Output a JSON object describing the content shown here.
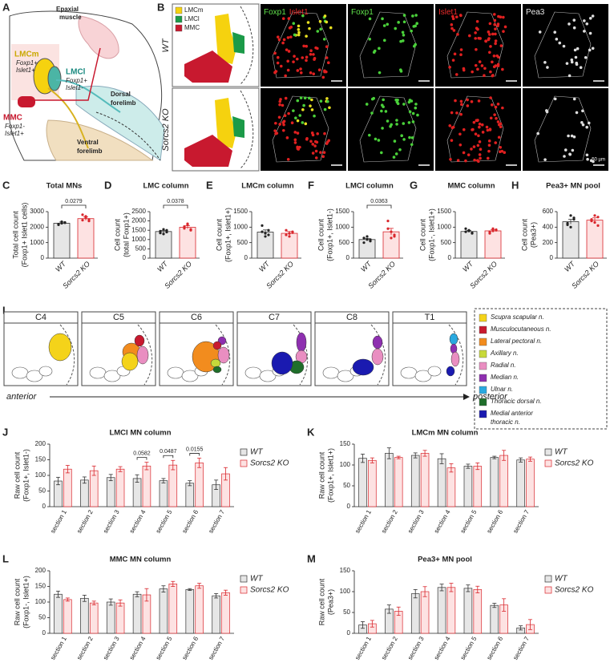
{
  "panel_a": {
    "letter": "A",
    "epaxial": [
      "Epaxial",
      "muscle"
    ],
    "lmcm": "LMCm",
    "lmcm_markers": [
      "Foxp1+",
      "Islet1+"
    ],
    "lmcl": "LMCl",
    "lmcl_markers": [
      "Foxp1+",
      "Islet1-"
    ],
    "mmc": "MMC",
    "mmc_markers": [
      "Foxp1-",
      "Islet1+"
    ],
    "dorsal": [
      "Dorsal",
      "forelimb"
    ],
    "ventral": [
      "Ventral",
      "forelimb"
    ]
  },
  "panel_b": {
    "letter": "B",
    "rows": [
      "WT",
      "Sorcs2 KO"
    ],
    "legend": [
      {
        "name": "LMCm",
        "color": "#f5d20f"
      },
      {
        "name": "LMCl",
        "color": "#1b9a48"
      },
      {
        "name": "MMC",
        "color": "#c8192f"
      }
    ],
    "channels": [
      [
        {
          "text": "Foxp1",
          "color": "#5fe04a"
        },
        {
          "text": "Islet1",
          "color": "#ee2b2b"
        }
      ],
      [
        {
          "text": "Foxp1",
          "color": "#5fe04a"
        }
      ],
      [
        {
          "text": "Islet1",
          "color": "#ee2b2b"
        }
      ],
      [
        {
          "text": "Pea3",
          "color": "#e6e6e6"
        }
      ]
    ],
    "scale_bar": "50 µm"
  },
  "panel_i": {
    "letter": "I",
    "levels": [
      "C4",
      "C5",
      "C6",
      "C7",
      "C8",
      "T1"
    ],
    "start": "anterior",
    "end": "posterior",
    "nerves": [
      {
        "lines": [
          "Scupra scapular n."
        ],
        "color": "#f4d31a"
      },
      {
        "lines": [
          "Musculocutaneous n."
        ],
        "color": "#c8192f"
      },
      {
        "lines": [
          "Lateral pectoral n."
        ],
        "color": "#f28c1e"
      },
      {
        "lines": [
          "Axillary n."
        ],
        "color": "#c7d93a"
      },
      {
        "lines": [
          "Radial n."
        ],
        "color": "#e98ec1"
      },
      {
        "lines": [
          "Median n."
        ],
        "color": "#8e2fb0"
      },
      {
        "lines": [
          "Ulnar n."
        ],
        "color": "#29a9e0"
      },
      {
        "lines": [
          "Thoracic dorsal n."
        ],
        "color": "#1f6e2a"
      },
      {
        "lines": [
          "Medial anterior",
          "thoracic n."
        ],
        "color": "#1a1ab0"
      }
    ]
  },
  "chart_data": [
    {
      "type": "bar",
      "panel": "C",
      "title": "Total MNs",
      "ylabel": [
        "Total cell count",
        "(Foxp1+ Islet1 cells)"
      ],
      "categories": [
        "WT",
        "Sorcs2 KO"
      ],
      "values": [
        2250,
        2550
      ],
      "errors": [
        80,
        110
      ],
      "points": [
        [
          2150,
          2250,
          2300,
          2200,
          2350,
          2280
        ],
        [
          2450,
          2700,
          2500,
          2800,
          2600,
          2400
        ]
      ],
      "colors": [
        "#e6e6e6",
        "#fde2e2"
      ],
      "edge_colors": [
        "#333333",
        "#d9262c"
      ],
      "ylim": [
        0,
        3000
      ],
      "yticks": [
        0,
        1000,
        2000,
        3000
      ],
      "p_value": "0.0279"
    },
    {
      "type": "bar",
      "panel": "D",
      "title": "LMC column",
      "ylabel": [
        "Cell count",
        "(total Foxp1+)"
      ],
      "categories": [
        "WT",
        "Sorcs2 KO"
      ],
      "values": [
        1430,
        1660
      ],
      "errors": [
        60,
        80
      ],
      "points": [
        [
          1350,
          1300,
          1500,
          1450,
          1550,
          1400
        ],
        [
          1600,
          1850,
          1500,
          1700,
          1800,
          1550
        ]
      ],
      "colors": [
        "#e6e6e6",
        "#fde2e2"
      ],
      "edge_colors": [
        "#333333",
        "#d9262c"
      ],
      "ylim": [
        0,
        2500
      ],
      "yticks": [
        0,
        500,
        1000,
        1500,
        2000,
        2500
      ],
      "p_value": "0.0378"
    },
    {
      "type": "bar",
      "panel": "E",
      "title": "LMCm column",
      "ylabel": [
        "Cell count",
        "(Foxp1+, Islet1+)"
      ],
      "categories": [
        "WT",
        "Sorcs2 KO"
      ],
      "values": [
        840,
        800
      ],
      "errors": [
        70,
        60
      ],
      "points": [
        [
          1050,
          700,
          900,
          850,
          800,
          750
        ],
        [
          900,
          700,
          850,
          750,
          800,
          820
        ]
      ],
      "colors": [
        "#e6e6e6",
        "#fde2e2"
      ],
      "edge_colors": [
        "#333333",
        "#d9262c"
      ],
      "ylim": [
        0,
        1500
      ],
      "yticks": [
        0,
        500,
        1000,
        1500
      ]
    },
    {
      "type": "bar",
      "panel": "F",
      "title": "LMCl column",
      "ylabel": [
        "Cell count",
        "(Foxp1+, Islet1-)"
      ],
      "categories": [
        "WT",
        "Sorcs2 KO"
      ],
      "values": [
        600,
        850
      ],
      "errors": [
        40,
        110
      ],
      "points": [
        [
          500,
          600,
          550,
          650,
          700,
          600
        ],
        [
          1200,
          650,
          700,
          950,
          850,
          750
        ]
      ],
      "colors": [
        "#e6e6e6",
        "#fde2e2"
      ],
      "edge_colors": [
        "#333333",
        "#d9262c"
      ],
      "ylim": [
        0,
        1500
      ],
      "yticks": [
        0,
        500,
        1000,
        1500
      ],
      "p_value": "0.0363"
    },
    {
      "type": "bar",
      "panel": "G",
      "title": "MMC column",
      "ylabel": [
        "Cell count",
        "(Foxp1-, Islet1+)"
      ],
      "categories": [
        "WT",
        "Sorcs2 KO"
      ],
      "values": [
        860,
        880
      ],
      "errors": [
        30,
        40
      ],
      "points": [
        [
          850,
          900,
          800,
          950,
          880,
          820
        ],
        [
          850,
          950,
          900,
          800,
          880,
          920
        ]
      ],
      "colors": [
        "#e6e6e6",
        "#fde2e2"
      ],
      "edge_colors": [
        "#333333",
        "#d9262c"
      ],
      "ylim": [
        0,
        1500
      ],
      "yticks": [
        0,
        500,
        1000,
        1500
      ]
    },
    {
      "type": "bar",
      "panel": "H",
      "title": "Pea3+ MN pool",
      "ylabel": [
        "Cell count",
        "(Pea3+)"
      ],
      "categories": [
        "WT",
        "Sorcs2 KO"
      ],
      "values": [
        470,
        490
      ],
      "errors": [
        30,
        30
      ],
      "points": [
        [
          430,
          550,
          500,
          450,
          400,
          520
        ],
        [
          480,
          550,
          420,
          500,
          460,
          530
        ]
      ],
      "colors": [
        "#e6e6e6",
        "#fde2e2"
      ],
      "edge_colors": [
        "#333333",
        "#d9262c"
      ],
      "ylim": [
        0,
        600
      ],
      "yticks": [
        0,
        200,
        400,
        600
      ]
    },
    {
      "type": "bar",
      "panel": "J",
      "title": "LMCl MN column",
      "ylabel": [
        "Raw cell count",
        "(Foxp1+, Islet1-)"
      ],
      "categories": [
        "section 1",
        "section 2",
        "section 3",
        "section 4",
        "section 5",
        "section 6",
        "section 7"
      ],
      "series": [
        {
          "name": "WT",
          "color": "#e6e6e6",
          "edge_color": "#333333",
          "values": [
            82,
            85,
            93,
            90,
            83,
            75,
            70
          ],
          "errors": [
            12,
            10,
            10,
            12,
            7,
            8,
            15
          ]
        },
        {
          "name": "Sorcs2 KO",
          "color": "#fde2e2",
          "edge_color": "#d9262c",
          "values": [
            120,
            115,
            120,
            130,
            133,
            140,
            105
          ],
          "errors": [
            12,
            15,
            8,
            12,
            15,
            15,
            20
          ]
        }
      ],
      "ylim": [
        0,
        200
      ],
      "yticks": [
        0,
        50,
        100,
        150,
        200
      ],
      "annotations": [
        {
          "text": "0.0582",
          "category": "section 4"
        },
        {
          "text": "0.0487",
          "category": "section 5"
        },
        {
          "text": "0.0155",
          "category": "section 6"
        }
      ]
    },
    {
      "type": "bar",
      "panel": "K",
      "title": "LMCm MN column",
      "ylabel": [
        "Raw cell count",
        "(Foxp1+, Islet1+)"
      ],
      "categories": [
        "section 1",
        "section 2",
        "section 3",
        "section 4",
        "section 5",
        "section 6",
        "section 7"
      ],
      "series": [
        {
          "name": "WT",
          "color": "#e6e6e6",
          "edge_color": "#333333",
          "values": [
            116,
            128,
            123,
            115,
            97,
            118,
            112
          ],
          "errors": [
            10,
            13,
            6,
            12,
            5,
            3,
            5
          ]
        },
        {
          "name": "Sorcs2 KO",
          "color": "#fde2e2",
          "edge_color": "#d9262c",
          "values": [
            111,
            118,
            128,
            93,
            97,
            123,
            114
          ],
          "errors": [
            6,
            3,
            7,
            10,
            8,
            12,
            5
          ]
        }
      ],
      "ylim": [
        0,
        150
      ],
      "yticks": [
        0,
        50,
        100,
        150
      ]
    },
    {
      "type": "bar",
      "panel": "L",
      "title": "MMC MN column",
      "ylabel": [
        "Raw cell count",
        "(Foxp1-, Islet1+)"
      ],
      "categories": [
        "section 1",
        "section 2",
        "section 3",
        "section 4",
        "section 5",
        "section 6",
        "section 7"
      ],
      "series": [
        {
          "name": "WT",
          "color": "#e6e6e6",
          "edge_color": "#333333",
          "values": [
            125,
            112,
            100,
            125,
            142,
            140,
            120
          ],
          "errors": [
            10,
            10,
            10,
            8,
            10,
            3,
            7
          ]
        },
        {
          "name": "Sorcs2 KO",
          "color": "#fde2e2",
          "edge_color": "#d9262c",
          "values": [
            108,
            97,
            97,
            123,
            158,
            152,
            130
          ],
          "errors": [
            5,
            6,
            10,
            20,
            8,
            8,
            8
          ]
        }
      ],
      "ylim": [
        0,
        200
      ],
      "yticks": [
        0,
        50,
        100,
        150,
        200
      ]
    },
    {
      "type": "bar",
      "panel": "M",
      "title": "Pea3+ MN pool",
      "ylabel": [
        "Raw cell count",
        "(Pea3+)"
      ],
      "categories": [
        "section 1",
        "section 2",
        "section 3",
        "section 4",
        "section 5",
        "section 6",
        "section 7"
      ],
      "series": [
        {
          "name": "WT",
          "color": "#e6e6e6",
          "edge_color": "#333333",
          "values": [
            20,
            58,
            95,
            110,
            108,
            67,
            13
          ],
          "errors": [
            8,
            10,
            10,
            8,
            8,
            5,
            5
          ]
        },
        {
          "name": "Sorcs2 KO",
          "color": "#fde2e2",
          "edge_color": "#d9262c",
          "values": [
            23,
            53,
            100,
            110,
            105,
            68,
            21
          ],
          "errors": [
            8,
            10,
            12,
            10,
            8,
            15,
            12
          ]
        }
      ],
      "ylim": [
        0,
        150
      ],
      "yticks": [
        0,
        50,
        100,
        150
      ]
    }
  ]
}
